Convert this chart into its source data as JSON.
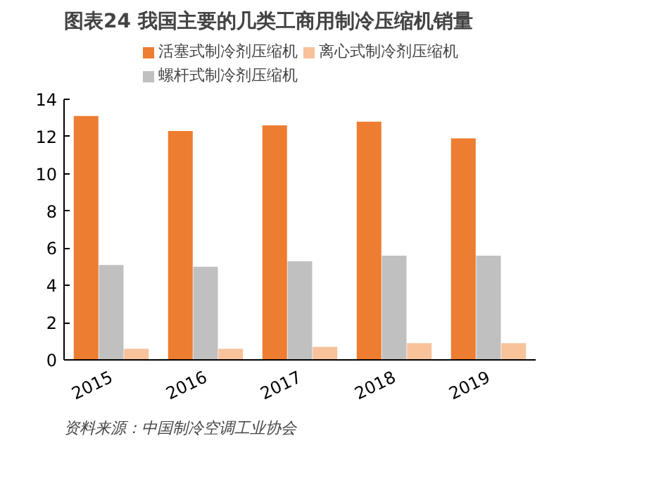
{
  "chart_data": {
    "type": "bar",
    "title": "图表24    我国主要的几类工商用制冷压缩机销量",
    "categories": [
      "2015",
      "2016",
      "2017",
      "2018",
      "2019"
    ],
    "series": [
      {
        "name": "活塞式制冷剂压缩机",
        "color": "#ed7d31",
        "values": [
          13.1,
          12.3,
          12.6,
          12.8,
          11.9
        ]
      },
      {
        "name": "螺杆式制冷剂压缩机",
        "color": "#c0c0c0",
        "values": [
          5.1,
          5.0,
          5.3,
          5.6,
          5.6
        ]
      },
      {
        "name": "离心式制冷剂压缩机",
        "color": "#f8c29a",
        "values": [
          0.6,
          0.6,
          0.7,
          0.9,
          0.9
        ]
      }
    ],
    "ylim": [
      0,
      14
    ],
    "yticks": [
      0,
      2,
      4,
      6,
      8,
      10,
      12,
      14
    ],
    "grid": false,
    "legend": "top",
    "annotations": [
      "资料来源：中国制冷空调工业协会"
    ]
  }
}
